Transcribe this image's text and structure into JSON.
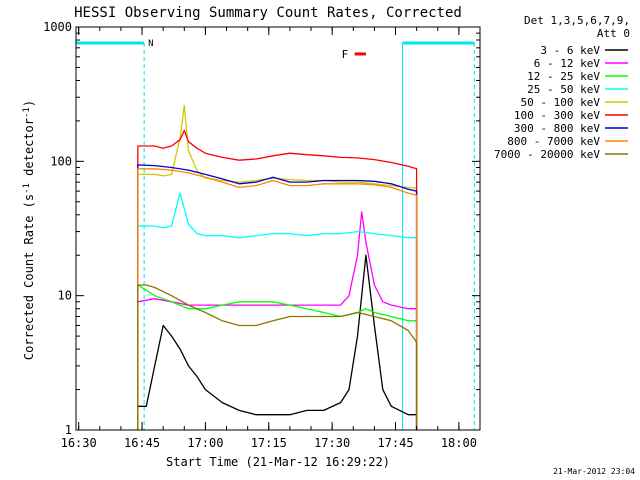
{
  "chart_data": {
    "type": "line",
    "title": "HESSI Observing Summary Count Rates, Corrected",
    "xlabel": "Start Time (21-Mar-12 16:29:22)",
    "ylabel_main": "Corrected Count Rate (s",
    "ylabel_sup1": "-1",
    "ylabel_mid": " detector",
    "ylabel_sup2": "-1",
    "ylabel_end": ")",
    "y_scale": "log",
    "xlim": [
      "16:29:22",
      "18:05:00"
    ],
    "ylim": [
      1,
      1000
    ],
    "x_ticks": [
      "16:30",
      "16:45",
      "17:00",
      "17:15",
      "17:30",
      "17:45",
      "18:00"
    ],
    "y_ticks": [
      "1",
      "10",
      "100",
      "1000"
    ],
    "detector_info": "Det 1,3,5,6,7,9,",
    "attenuator_info": "Att 0",
    "timestamp": "21-Mar-2012 23:04",
    "night_marker": "N",
    "flare_marker": "F",
    "series": [
      {
        "name": "3 - 6 keV",
        "color": "#000000",
        "x": [
          "16:44",
          "16:46",
          "16:48",
          "16:50",
          "16:52",
          "16:54",
          "16:56",
          "16:58",
          "17:00",
          "17:04",
          "17:08",
          "17:12",
          "17:16",
          "17:20",
          "17:24",
          "17:28",
          "17:32",
          "17:34",
          "17:36",
          "17:38",
          "17:40",
          "17:42",
          "17:44",
          "17:46",
          "17:48",
          "17:50"
        ],
        "y": [
          1.5,
          1.5,
          3,
          6,
          5,
          4,
          3,
          2.5,
          2,
          1.6,
          1.4,
          1.3,
          1.3,
          1.3,
          1.4,
          1.4,
          1.6,
          2,
          5,
          20,
          6,
          2,
          1.5,
          1.4,
          1.3,
          1.3
        ]
      },
      {
        "name": "6 - 12 keV",
        "color": "#ff00ff",
        "x": [
          "16:44",
          "16:48",
          "16:52",
          "16:56",
          "17:00",
          "17:04",
          "17:08",
          "17:12",
          "17:16",
          "17:20",
          "17:24",
          "17:28",
          "17:32",
          "17:34",
          "17:36",
          "17:37",
          "17:38",
          "17:40",
          "17:42",
          "17:44",
          "17:48",
          "17:50"
        ],
        "y": [
          9,
          9.5,
          9,
          8.5,
          8.5,
          8.5,
          8.5,
          8.5,
          8.5,
          8.5,
          8.5,
          8.5,
          8.5,
          10,
          20,
          42,
          25,
          12,
          9,
          8.5,
          8,
          8
        ]
      },
      {
        "name": "12 - 25 keV",
        "color": "#00ff00",
        "x": [
          "16:44",
          "16:48",
          "16:52",
          "16:56",
          "17:00",
          "17:04",
          "17:08",
          "17:12",
          "17:16",
          "17:20",
          "17:24",
          "17:28",
          "17:32",
          "17:36",
          "17:38",
          "17:40",
          "17:44",
          "17:48",
          "17:50"
        ],
        "y": [
          12,
          10,
          9,
          8,
          8,
          8.5,
          9,
          9,
          9,
          8.5,
          8,
          7.5,
          7,
          7.5,
          8,
          7.5,
          7,
          6.5,
          6.5
        ]
      },
      {
        "name": "25 - 50 keV",
        "color": "#00ffff",
        "x": [
          "16:44",
          "16:48",
          "16:50",
          "16:52",
          "16:54",
          "16:56",
          "16:58",
          "17:00",
          "17:04",
          "17:08",
          "17:12",
          "17:16",
          "17:20",
          "17:24",
          "17:28",
          "17:32",
          "17:36",
          "17:40",
          "17:44",
          "17:48",
          "17:50"
        ],
        "y": [
          33,
          33,
          32,
          33,
          58,
          34,
          29,
          28,
          28,
          27,
          28,
          29,
          29,
          28,
          29,
          29,
          30,
          29,
          28,
          27,
          27
        ]
      },
      {
        "name": "50 - 100 keV",
        "color": "#d2c800",
        "x": [
          "16:44",
          "16:48",
          "16:50",
          "16:52",
          "16:54",
          "16:55",
          "16:56",
          "16:58",
          "17:00",
          "17:04",
          "17:08",
          "17:12",
          "17:16",
          "17:20",
          "17:24",
          "17:28",
          "17:32",
          "17:36",
          "17:40",
          "17:44",
          "17:48",
          "17:50"
        ],
        "y": [
          80,
          80,
          78,
          80,
          150,
          260,
          120,
          85,
          75,
          72,
          70,
          72,
          75,
          73,
          72,
          72,
          70,
          70,
          68,
          66,
          64,
          63
        ]
      },
      {
        "name": "100 - 300 keV",
        "color": "#ff0000",
        "x": [
          "16:44",
          "16:48",
          "16:50",
          "16:52",
          "16:54",
          "16:55",
          "16:56",
          "16:58",
          "17:00",
          "17:04",
          "17:08",
          "17:12",
          "17:16",
          "17:20",
          "17:24",
          "17:28",
          "17:32",
          "17:36",
          "17:40",
          "17:44",
          "17:48",
          "17:50"
        ],
        "y": [
          130,
          130,
          125,
          130,
          145,
          170,
          140,
          125,
          115,
          107,
          102,
          104,
          110,
          115,
          112,
          110,
          107,
          106,
          103,
          98,
          92,
          88
        ]
      },
      {
        "name": "300 - 800 keV",
        "color": "#0000cc",
        "x": [
          "16:44",
          "16:48",
          "16:52",
          "16:56",
          "17:00",
          "17:04",
          "17:08",
          "17:12",
          "17:16",
          "17:20",
          "17:24",
          "17:28",
          "17:32",
          "17:36",
          "17:40",
          "17:44",
          "17:48",
          "17:50"
        ],
        "y": [
          94,
          93,
          90,
          86,
          80,
          74,
          68,
          70,
          76,
          70,
          70,
          72,
          72,
          72,
          71,
          68,
          62,
          60
        ]
      },
      {
        "name": "800 - 7000 keV",
        "color": "#ff8800",
        "x": [
          "16:44",
          "16:48",
          "16:52",
          "16:56",
          "17:00",
          "17:04",
          "17:08",
          "17:12",
          "17:16",
          "17:20",
          "17:24",
          "17:28",
          "17:32",
          "17:36",
          "17:40",
          "17:44",
          "17:48",
          "17:50"
        ],
        "y": [
          88,
          88,
          86,
          82,
          76,
          70,
          64,
          66,
          72,
          66,
          66,
          68,
          68,
          68,
          67,
          64,
          58,
          56
        ]
      },
      {
        "name": "7000 - 20000 keV",
        "color": "#8b7500",
        "x": [
          "16:44",
          "16:46",
          "16:48",
          "16:52",
          "16:56",
          "17:00",
          "17:04",
          "17:08",
          "17:12",
          "17:16",
          "17:20",
          "17:24",
          "17:28",
          "17:32",
          "17:36",
          "17:40",
          "17:44",
          "17:48",
          "17:50"
        ],
        "y": [
          12,
          12,
          11.5,
          10,
          8.5,
          7.5,
          6.5,
          6,
          6,
          6.5,
          7,
          7,
          7,
          7,
          7.5,
          7,
          6.5,
          5.5,
          4.5
        ]
      }
    ],
    "night_interval": [
      "16:29:22",
      "16:45:30"
    ],
    "night2_interval": [
      "17:46:40",
      "18:03:40"
    ],
    "flare_marker_time": [
      "17:35:20",
      "17:38:00"
    ]
  }
}
